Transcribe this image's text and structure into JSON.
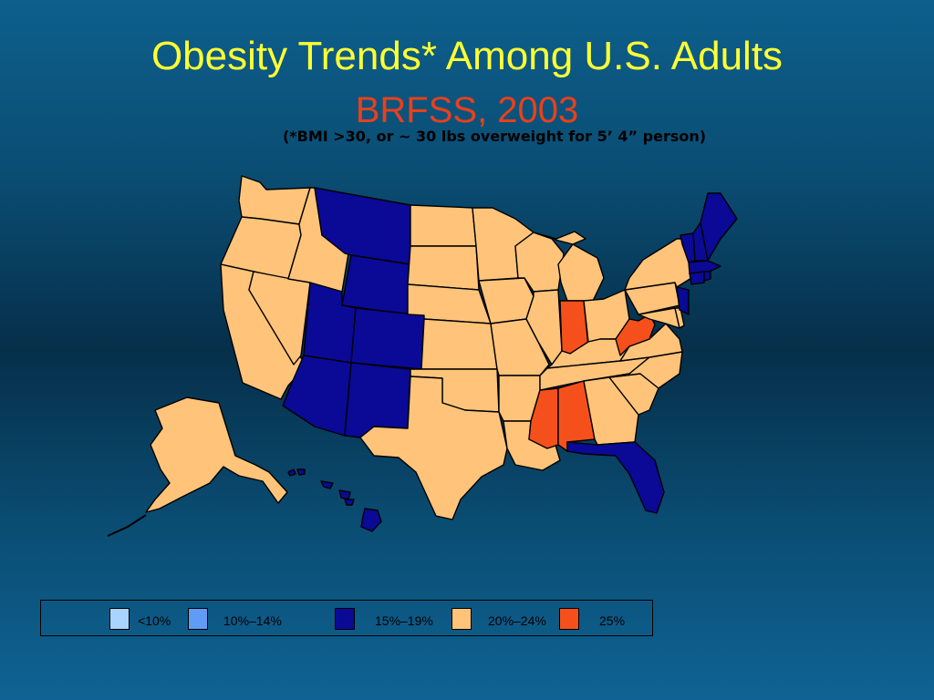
{
  "slide": {
    "title": "Obesity Trends* Among U.S. Adults",
    "subtitle": "BRFSS, 2003",
    "note": "(*BMI >30, or ~ 30 lbs overweight for 5’ 4” person)"
  },
  "legend": [
    {
      "label": "<10%",
      "color": "#a8d4ff"
    },
    {
      "label": "10%–14%",
      "color": "#5f9cf5"
    },
    {
      "label": "15%–19%",
      "color": "#0a0a96"
    },
    {
      "label": "20%–24%",
      "color": "#ffc47a"
    },
    {
      "label": "25%",
      "color": "#f5501c"
    }
  ],
  "categories": {
    "c15_19": [
      "Montana",
      "Wyoming",
      "Utah",
      "Colorado",
      "Arizona",
      "New Mexico",
      "Florida",
      "Vermont",
      "New Hampshire",
      "Maine",
      "Massachusetts",
      "Connecticut",
      "Rhode Island",
      "New Jersey",
      "Hawaii"
    ],
    "c25": [
      "Indiana",
      "West Virginia",
      "Mississippi",
      "Alabama"
    ],
    "c20_24": [
      "Washington",
      "Oregon",
      "California",
      "Idaho",
      "Nevada",
      "North Dakota",
      "South Dakota",
      "Nebraska",
      "Kansas",
      "Oklahoma",
      "Texas",
      "Minnesota",
      "Iowa",
      "Missouri",
      "Arkansas",
      "Louisiana",
      "Wisconsin",
      "Illinois",
      "Michigan",
      "Ohio",
      "Kentucky",
      "Tennessee",
      "Georgia",
      "South Carolina",
      "North Carolina",
      "Virginia",
      "Maryland",
      "Delaware",
      "Pennsylvania",
      "New York",
      "Alaska"
    ]
  }
}
